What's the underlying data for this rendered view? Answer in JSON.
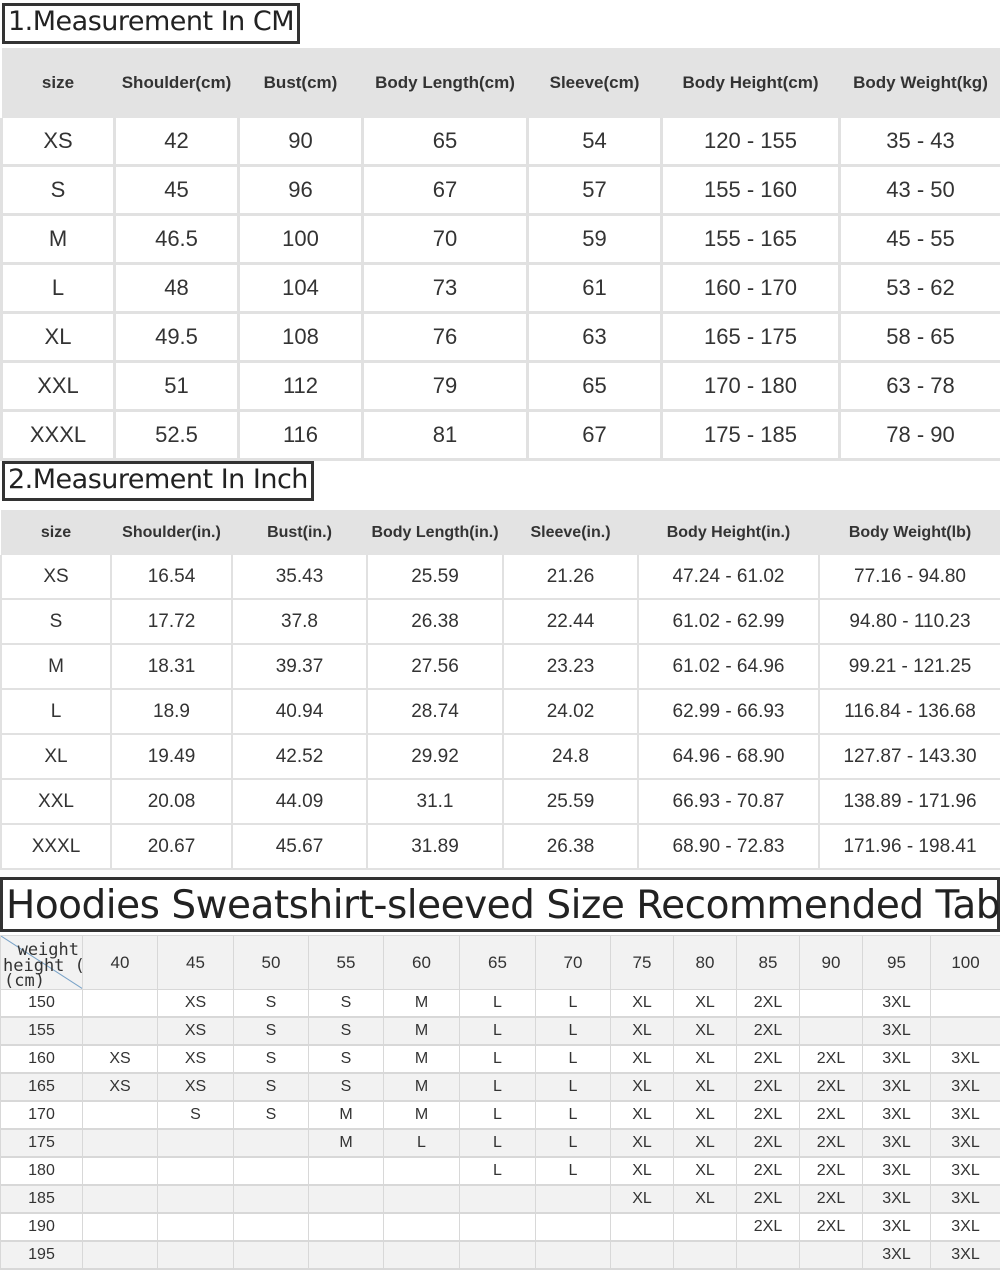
{
  "cm_table": {
    "title": "1.Measurement In CM",
    "headers": [
      "size",
      "Shoulder(cm)",
      "Bust(cm)",
      "Body Length(cm)",
      "Sleeve(cm)",
      "Body Height(cm)",
      "Body Weight(kg)"
    ],
    "rows": [
      [
        "XS",
        "42",
        "90",
        "65",
        "54",
        "120 - 155",
        "35 - 43"
      ],
      [
        "S",
        "45",
        "96",
        "67",
        "57",
        "155 - 160",
        "43 - 50"
      ],
      [
        "M",
        "46.5",
        "100",
        "70",
        "59",
        "155 - 165",
        "45 - 55"
      ],
      [
        "L",
        "48",
        "104",
        "73",
        "61",
        "160 - 170",
        "53 - 62"
      ],
      [
        "XL",
        "49.5",
        "108",
        "76",
        "63",
        "165 - 175",
        "58 - 65"
      ],
      [
        "XXL",
        "51",
        "112",
        "79",
        "65",
        "170 - 180",
        "63 - 78"
      ],
      [
        "XXXL",
        "52.5",
        "116",
        "81",
        "67",
        "175 - 185",
        "78 - 90"
      ]
    ]
  },
  "inch_table": {
    "title": "2.Measurement In Inch",
    "headers": [
      "size",
      "Shoulder(in.)",
      "Bust(in.)",
      "Body Length(in.)",
      "Sleeve(in.)",
      "Body Height(in.)",
      "Body Weight(lb)"
    ],
    "rows": [
      [
        "XS",
        "16.54",
        "35.43",
        "25.59",
        "21.26",
        "47.24 - 61.02",
        "77.16 - 94.80"
      ],
      [
        "S",
        "17.72",
        "37.8",
        "26.38",
        "22.44",
        "61.02 - 62.99",
        "94.80 - 110.23"
      ],
      [
        "M",
        "18.31",
        "39.37",
        "27.56",
        "23.23",
        "61.02 - 64.96",
        "99.21 - 121.25"
      ],
      [
        "L",
        "18.9",
        "40.94",
        "28.74",
        "24.02",
        "62.99 - 66.93",
        "116.84 - 136.68"
      ],
      [
        "XL",
        "19.49",
        "42.52",
        "29.92",
        "24.8",
        "64.96 - 68.90",
        "127.87 - 143.30"
      ],
      [
        "XXL",
        "20.08",
        "44.09",
        "31.1",
        "25.59",
        "66.93 - 70.87",
        "138.89 - 171.96"
      ],
      [
        "XXXL",
        "20.67",
        "45.67",
        "31.89",
        "26.38",
        "68.90 - 72.83",
        "171.96 - 198.41"
      ]
    ]
  },
  "recommend_table": {
    "title": "Hoodies Sweatshirt-sleeved Size Recommended Table",
    "corner_weight": "weight",
    "corner_height": "height (kg)",
    "corner_unit": "(cm)",
    "weights": [
      "40",
      "45",
      "50",
      "55",
      "60",
      "65",
      "70",
      "75",
      "80",
      "85",
      "90",
      "95",
      "100"
    ],
    "rows": [
      [
        "150",
        "",
        "XS",
        "S",
        "S",
        "M",
        "L",
        "L",
        "XL",
        "XL",
        "2XL",
        "",
        "3XL",
        ""
      ],
      [
        "155",
        "",
        "XS",
        "S",
        "S",
        "M",
        "L",
        "L",
        "XL",
        "XL",
        "2XL",
        "",
        "3XL",
        ""
      ],
      [
        "160",
        "XS",
        "XS",
        "S",
        "S",
        "M",
        "L",
        "L",
        "XL",
        "XL",
        "2XL",
        "2XL",
        "3XL",
        "3XL"
      ],
      [
        "165",
        "XS",
        "XS",
        "S",
        "S",
        "M",
        "L",
        "L",
        "XL",
        "XL",
        "2XL",
        "2XL",
        "3XL",
        "3XL"
      ],
      [
        "170",
        "",
        "S",
        "S",
        "M",
        "M",
        "L",
        "L",
        "XL",
        "XL",
        "2XL",
        "2XL",
        "3XL",
        "3XL"
      ],
      [
        "175",
        "",
        "",
        "",
        "M",
        "L",
        "L",
        "L",
        "XL",
        "XL",
        "2XL",
        "2XL",
        "3XL",
        "3XL"
      ],
      [
        "180",
        "",
        "",
        "",
        "",
        "",
        "L",
        "L",
        "XL",
        "XL",
        "2XL",
        "2XL",
        "3XL",
        "3XL"
      ],
      [
        "185",
        "",
        "",
        "",
        "",
        "",
        "",
        "",
        "XL",
        "XL",
        "2XL",
        "2XL",
        "3XL",
        "3XL"
      ],
      [
        "190",
        "",
        "",
        "",
        "",
        "",
        "",
        "",
        "",
        "",
        "2XL",
        "2XL",
        "3XL",
        "3XL"
      ],
      [
        "195",
        "",
        "",
        "",
        "",
        "",
        "",
        "",
        "",
        "",
        "",
        "",
        "3XL",
        "3XL"
      ]
    ]
  }
}
